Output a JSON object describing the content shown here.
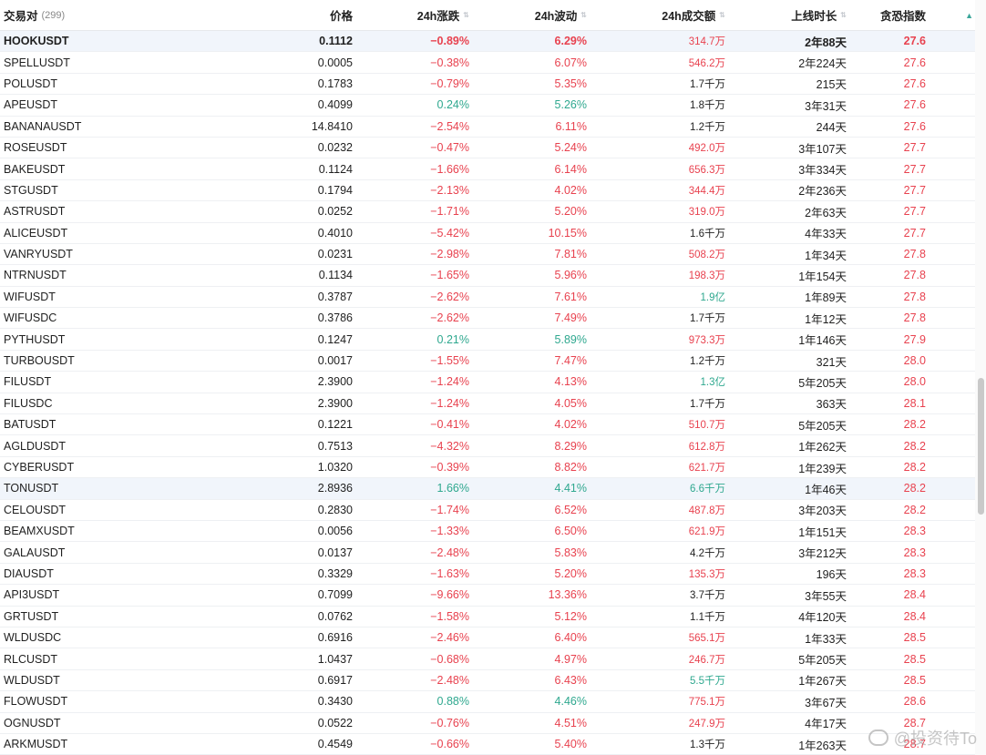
{
  "header": {
    "symbol": "交易对",
    "count": "(299)",
    "price": "价格",
    "change": "24h涨跌",
    "volatility": "24h波动",
    "amount": "24h成交额",
    "age": "上线时长",
    "fear_greed": "贪恐指数",
    "sort_up_icon": "▲",
    "sort_icon": "⇅"
  },
  "colors": {
    "red": "#e8424f",
    "green": "#2fa88f",
    "highlight": "#f1f5fb"
  },
  "rows": [
    {
      "symbol": "HOOKUSDT",
      "price": "0.1112",
      "change": "−0.89%",
      "volatility": "6.29%",
      "amount": "314.7万",
      "age": "2年88天",
      "fg": "27.6"
    },
    {
      "symbol": "SPELLUSDT",
      "price": "0.0005",
      "change": "−0.38%",
      "volatility": "6.07%",
      "amount": "546.2万",
      "age": "2年224天",
      "fg": "27.6"
    },
    {
      "symbol": "POLUSDT",
      "price": "0.1783",
      "change": "−0.79%",
      "volatility": "5.35%",
      "amount": "1.7千万",
      "age": "215天",
      "fg": "27.6"
    },
    {
      "symbol": "APEUSDT",
      "price": "0.4099",
      "change": "0.24%",
      "volatility": "5.26%",
      "amount": "1.8千万",
      "age": "3年31天",
      "fg": "27.6"
    },
    {
      "symbol": "BANANAUSDT",
      "price": "14.8410",
      "change": "−2.54%",
      "volatility": "6.11%",
      "amount": "1.2千万",
      "age": "244天",
      "fg": "27.6"
    },
    {
      "symbol": "ROSEUSDT",
      "price": "0.0232",
      "change": "−0.47%",
      "volatility": "5.24%",
      "amount": "492.0万",
      "age": "3年107天",
      "fg": "27.7"
    },
    {
      "symbol": "BAKEUSDT",
      "price": "0.1124",
      "change": "−1.66%",
      "volatility": "6.14%",
      "amount": "656.3万",
      "age": "3年334天",
      "fg": "27.7"
    },
    {
      "symbol": "STGUSDT",
      "price": "0.1794",
      "change": "−2.13%",
      "volatility": "4.02%",
      "amount": "344.4万",
      "age": "2年236天",
      "fg": "27.7"
    },
    {
      "symbol": "ASTRUSDT",
      "price": "0.0252",
      "change": "−1.71%",
      "volatility": "5.20%",
      "amount": "319.0万",
      "age": "2年63天",
      "fg": "27.7"
    },
    {
      "symbol": "ALICEUSDT",
      "price": "0.4010",
      "change": "−5.42%",
      "volatility": "10.15%",
      "amount": "1.6千万",
      "age": "4年33天",
      "fg": "27.7"
    },
    {
      "symbol": "VANRYUSDT",
      "price": "0.0231",
      "change": "−2.98%",
      "volatility": "7.81%",
      "amount": "508.2万",
      "age": "1年34天",
      "fg": "27.8"
    },
    {
      "symbol": "NTRNUSDT",
      "price": "0.1134",
      "change": "−1.65%",
      "volatility": "5.96%",
      "amount": "198.3万",
      "age": "1年154天",
      "fg": "27.8"
    },
    {
      "symbol": "WIFUSDT",
      "price": "0.3787",
      "change": "−2.62%",
      "volatility": "7.61%",
      "amount": "1.9亿",
      "age": "1年89天",
      "fg": "27.8"
    },
    {
      "symbol": "WIFUSDC",
      "price": "0.3786",
      "change": "−2.62%",
      "volatility": "7.49%",
      "amount": "1.7千万",
      "age": "1年12天",
      "fg": "27.8"
    },
    {
      "symbol": "PYTHUSDT",
      "price": "0.1247",
      "change": "0.21%",
      "volatility": "5.89%",
      "amount": "973.3万",
      "age": "1年146天",
      "fg": "27.9"
    },
    {
      "symbol": "TURBOUSDT",
      "price": "0.0017",
      "change": "−1.55%",
      "volatility": "7.47%",
      "amount": "1.2千万",
      "age": "321天",
      "fg": "28.0"
    },
    {
      "symbol": "FILUSDT",
      "price": "2.3900",
      "change": "−1.24%",
      "volatility": "4.13%",
      "amount": "1.3亿",
      "age": "5年205天",
      "fg": "28.0"
    },
    {
      "symbol": "FILUSDC",
      "price": "2.3900",
      "change": "−1.24%",
      "volatility": "4.05%",
      "amount": "1.7千万",
      "age": "363天",
      "fg": "28.1"
    },
    {
      "symbol": "BATUSDT",
      "price": "0.1221",
      "change": "−0.41%",
      "volatility": "4.02%",
      "amount": "510.7万",
      "age": "5年205天",
      "fg": "28.2"
    },
    {
      "symbol": "AGLDUSDT",
      "price": "0.7513",
      "change": "−4.32%",
      "volatility": "8.29%",
      "amount": "612.8万",
      "age": "1年262天",
      "fg": "28.2"
    },
    {
      "symbol": "CYBERUSDT",
      "price": "1.0320",
      "change": "−0.39%",
      "volatility": "8.82%",
      "amount": "621.7万",
      "age": "1年239天",
      "fg": "28.2"
    },
    {
      "symbol": "TONUSDT",
      "price": "2.8936",
      "change": "1.66%",
      "volatility": "4.41%",
      "amount": "6.6千万",
      "age": "1年46天",
      "fg": "28.2"
    },
    {
      "symbol": "CELOUSDT",
      "price": "0.2830",
      "change": "−1.74%",
      "volatility": "6.52%",
      "amount": "487.8万",
      "age": "3年203天",
      "fg": "28.2"
    },
    {
      "symbol": "BEAMXUSDT",
      "price": "0.0056",
      "change": "−1.33%",
      "volatility": "6.50%",
      "amount": "621.9万",
      "age": "1年151天",
      "fg": "28.3"
    },
    {
      "symbol": "GALAUSDT",
      "price": "0.0137",
      "change": "−2.48%",
      "volatility": "5.83%",
      "amount": "4.2千万",
      "age": "3年212天",
      "fg": "28.3"
    },
    {
      "symbol": "DIAUSDT",
      "price": "0.3329",
      "change": "−1.63%",
      "volatility": "5.20%",
      "amount": "135.3万",
      "age": "196天",
      "fg": "28.3"
    },
    {
      "symbol": "API3USDT",
      "price": "0.7099",
      "change": "−9.66%",
      "volatility": "13.36%",
      "amount": "3.7千万",
      "age": "3年55天",
      "fg": "28.4"
    },
    {
      "symbol": "GRTUSDT",
      "price": "0.0762",
      "change": "−1.58%",
      "volatility": "5.12%",
      "amount": "1.1千万",
      "age": "4年120天",
      "fg": "28.4"
    },
    {
      "symbol": "WLDUSDC",
      "price": "0.6916",
      "change": "−2.46%",
      "volatility": "6.40%",
      "amount": "565.1万",
      "age": "1年33天",
      "fg": "28.5"
    },
    {
      "symbol": "RLCUSDT",
      "price": "1.0437",
      "change": "−0.68%",
      "volatility": "4.97%",
      "amount": "246.7万",
      "age": "5年205天",
      "fg": "28.5"
    },
    {
      "symbol": "WLDUSDT",
      "price": "0.6917",
      "change": "−2.48%",
      "volatility": "6.43%",
      "amount": "5.5千万",
      "age": "1年267天",
      "fg": "28.5"
    },
    {
      "symbol": "FLOWUSDT",
      "price": "0.3430",
      "change": "0.88%",
      "volatility": "4.46%",
      "amount": "775.1万",
      "age": "3年67天",
      "fg": "28.6"
    },
    {
      "symbol": "OGNUSDT",
      "price": "0.0522",
      "change": "−0.76%",
      "volatility": "4.51%",
      "amount": "247.9万",
      "age": "4年17天",
      "fg": "28.7"
    },
    {
      "symbol": "ARKMUSDT",
      "price": "0.4549",
      "change": "−0.66%",
      "volatility": "5.40%",
      "amount": "1.3千万",
      "age": "1年263天",
      "fg": "28.7"
    }
  ],
  "watermark": {
    "text": "@投资待To",
    "icon": "wechat-icon"
  }
}
